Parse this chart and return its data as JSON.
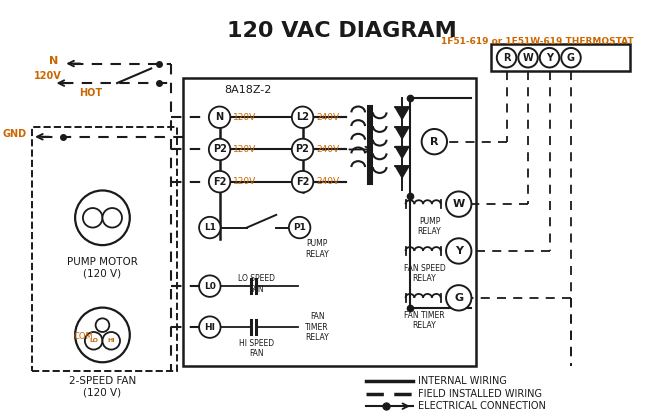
{
  "title": "120 VAC DIAGRAM",
  "title_color": "#1a1a1a",
  "title_fontsize": 16,
  "bg_color": "#ffffff",
  "orange_color": "#cc6600",
  "black_color": "#1a1a1a",
  "thermostat_label": "1F51-619 or 1F51W-619 THERMOSTAT",
  "controller_label": "8A18Z-2",
  "legend_items": [
    {
      "label": "INTERNAL WIRING",
      "style": "solid"
    },
    {
      "label": "FIELD INSTALLED WIRING",
      "style": "dashed_thick"
    },
    {
      "label": "ELECTRICAL CONNECTION",
      "style": "arrow_dot"
    }
  ],
  "terminal_labels_left": [
    "N",
    "P2",
    "F2"
  ],
  "terminal_labels_right": [
    "L2",
    "P2",
    "F2"
  ],
  "voltage_left": [
    "120V",
    "120V",
    "120V"
  ],
  "voltage_right": [
    "240V",
    "240V",
    "240V"
  ],
  "thermostat_circles": [
    "R",
    "W",
    "Y",
    "G"
  ],
  "pump_motor_label": "PUMP MOTOR\n(120 V)",
  "fan_label": "2-SPEED FAN\n(120 V)"
}
